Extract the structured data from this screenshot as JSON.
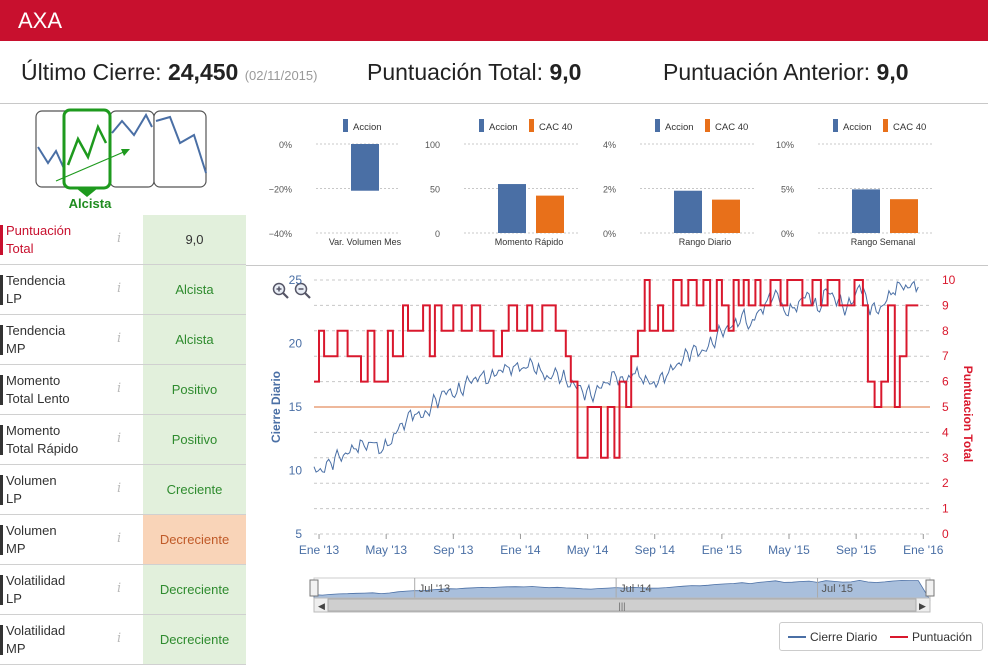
{
  "header": {
    "title": "AXA",
    "brand_color": "#c8102e"
  },
  "summary": {
    "last_close_label": "Último Cierre:",
    "last_close_value": "24,450",
    "last_close_date": "(02/11/2015)",
    "total_label": "Puntuación Total:",
    "total_value": "9,0",
    "prev_label": "Puntuación Anterior:",
    "prev_value": "9,0"
  },
  "trend": {
    "label": "Alcista"
  },
  "indicators": [
    {
      "label": "Puntuación\nTotal",
      "value": "9,0",
      "state": "neutral"
    },
    {
      "label": "Tendencia\nLP",
      "value": "Alcista",
      "state": "good"
    },
    {
      "label": "Tendencia\nMP",
      "value": "Alcista",
      "state": "good"
    },
    {
      "label": "Momento\nTotal Lento",
      "value": "Positivo",
      "state": "good"
    },
    {
      "label": "Momento\nTotal Rápido",
      "value": "Positivo",
      "state": "good"
    },
    {
      "label": "Volumen\nLP",
      "value": "Creciente",
      "state": "good"
    },
    {
      "label": "Volumen\nMP",
      "value": "Decreciente",
      "state": "warn"
    },
    {
      "label": "Volatilidad\nLP",
      "value": "Decreciente",
      "state": "good"
    },
    {
      "label": "Volatilidad\nMP",
      "value": "Decreciente",
      "state": "good"
    }
  ],
  "info_glyph": "i",
  "colors": {
    "accion": "#4a6fa5",
    "cac40": "#e8701a",
    "price_line": "#4a6fa5",
    "score_line": "#d9182d",
    "threshold": "#e8a07a",
    "good_bg": "#e2f0dc",
    "warn_bg": "#f9d4b8"
  },
  "chart_data": [
    {
      "type": "bar",
      "title": "Var. Volumen Mes",
      "legend": [
        "Accion"
      ],
      "series": [
        {
          "name": "Accion",
          "values": [
            -21
          ]
        }
      ],
      "ylim": [
        -40,
        0
      ],
      "yticks": [
        "0%",
        "−20%",
        "−40%"
      ]
    },
    {
      "type": "bar",
      "title": "Momento Rápido",
      "legend": [
        "Accion",
        "CAC 40"
      ],
      "series": [
        {
          "name": "Accion",
          "values": [
            55
          ]
        },
        {
          "name": "CAC 40",
          "values": [
            42
          ]
        }
      ],
      "ylim": [
        0,
        100
      ],
      "yticks": [
        "100",
        "50",
        "0"
      ]
    },
    {
      "type": "bar",
      "title": "Rango Diario",
      "legend": [
        "Accion",
        "CAC 40"
      ],
      "series": [
        {
          "name": "Accion",
          "values": [
            1.9
          ]
        },
        {
          "name": "CAC 40",
          "values": [
            1.5
          ]
        }
      ],
      "ylim": [
        0,
        4
      ],
      "yticks": [
        "4%",
        "2%",
        "0%"
      ]
    },
    {
      "type": "bar",
      "title": "Rango Semanal",
      "legend": [
        "Accion",
        "CAC 40"
      ],
      "series": [
        {
          "name": "Accion",
          "values": [
            4.9
          ]
        },
        {
          "name": "CAC 40",
          "values": [
            3.8
          ]
        }
      ],
      "ylim": [
        0,
        10
      ],
      "yticks": [
        "10%",
        "5%",
        "0%"
      ]
    },
    {
      "type": "line",
      "title": "",
      "ylabel": "Cierre Diario",
      "y2label": "Puntuacion Total",
      "ylim": [
        5,
        25
      ],
      "y2lim": [
        0,
        10
      ],
      "yticks": [
        "25",
        "20",
        "15",
        "10",
        "5"
      ],
      "y2ticks": [
        "10",
        "9",
        "8",
        "7",
        "6",
        "5",
        "4",
        "3",
        "2",
        "1",
        "0"
      ],
      "xticks": [
        "Ene '13",
        "May '13",
        "Sep '13",
        "Ene '14",
        "May '14",
        "Sep '14",
        "Ene '15",
        "May '15",
        "Sep '15",
        "Ene '16"
      ],
      "navigator_ticks": [
        "Jul '13",
        "Jul '14",
        "Jul '15"
      ],
      "threshold": 5,
      "series": [
        {
          "name": "Cierre Diario",
          "axis": "left",
          "t": [
            0,
            0.5,
            1,
            1.5,
            2,
            2.5,
            3,
            3.5,
            4,
            4.5,
            5,
            5.5,
            6,
            6.5,
            7,
            7.5,
            8,
            8.5,
            9,
            9.5,
            10,
            10.5,
            11,
            11.5,
            12,
            12.5,
            13,
            13.5,
            14,
            14.5,
            15,
            15.5,
            16,
            16.5,
            17,
            17.5,
            18,
            18.5,
            19,
            19.5,
            20,
            20.5,
            21,
            21.5,
            22,
            22.5,
            23,
            23.5,
            24,
            24.5,
            25,
            25.5,
            26,
            26.5,
            27,
            27.5,
            28,
            28.5,
            29,
            29.5,
            30,
            30.5,
            31,
            31.5,
            32,
            32.5,
            33,
            33.5,
            34,
            34.5,
            35,
            35.5,
            36
          ],
          "values": [
            10.3,
            9.9,
            10.6,
            11.1,
            11.3,
            11.7,
            11.9,
            12.2,
            11.4,
            12.0,
            13.2,
            13.9,
            14.4,
            14.2,
            15.1,
            15.7,
            16.3,
            16.1,
            16.8,
            17.2,
            17.6,
            17.3,
            17.9,
            18.2,
            18.3,
            18.1,
            18.5,
            17.9,
            17.3,
            17.7,
            17.1,
            16.8,
            16.2,
            15.9,
            16.5,
            16.9,
            17.4,
            16.9,
            17.6,
            17.2,
            16.8,
            16.9,
            17.4,
            18.1,
            18.8,
            19.4,
            19.2,
            19.8,
            20.6,
            21.1,
            21.5,
            22.3,
            21.4,
            22.6,
            23.4,
            24.2,
            22.6,
            22.8,
            23.5,
            23.9,
            22.6,
            24.3,
            23.6,
            22.9,
            23.1,
            24.6,
            23.0,
            22.5,
            23.1,
            24.0,
            24.5,
            24.4,
            24.45
          ]
        },
        {
          "name": "Puntuación",
          "axis": "right",
          "step": true,
          "t": [
            0,
            0.3,
            0.6,
            1.4,
            2.0,
            2.8,
            3.2,
            3.6,
            4.4,
            4.7,
            5.3,
            5.6,
            6.5,
            6.9,
            7.2,
            7.6,
            8.3,
            8.8,
            9.4,
            9.9,
            10.7,
            11.2,
            11.6,
            12.1,
            12.7,
            13.0,
            13.6,
            14.4,
            15.0,
            15.3,
            15.7,
            16.3,
            17.1,
            17.5,
            17.9,
            18.2,
            18.6,
            18.9,
            19.3,
            19.7,
            20.0,
            20.5,
            20.8,
            21.4,
            21.9,
            22.3,
            22.8,
            23.2,
            23.6,
            24.0,
            24.3,
            24.7,
            25.0,
            25.3,
            25.6,
            25.9,
            26.3,
            26.6,
            27.2,
            27.8,
            28.2,
            28.6,
            29.1,
            29.7,
            30.2,
            30.6,
            31.3,
            31.8,
            32.2,
            32.7,
            33.0,
            33.4,
            33.8,
            34.2,
            34.6,
            34.9,
            35.3,
            35.6,
            36
          ],
          "values": [
            6,
            8,
            7,
            8,
            7,
            6,
            8,
            6,
            8,
            7,
            9,
            8,
            9,
            7,
            9,
            8,
            9,
            8,
            9,
            8,
            7,
            8,
            9,
            8,
            9,
            8,
            9,
            8,
            7,
            6,
            3,
            5,
            3,
            5,
            3,
            6,
            5,
            7,
            8,
            10,
            8,
            9,
            8,
            10,
            9,
            10,
            9,
            10,
            8,
            10,
            9,
            8,
            10,
            9,
            10,
            9,
            10,
            9,
            10,
            9,
            10,
            10,
            9,
            10,
            9,
            10,
            9,
            9,
            10,
            9,
            6,
            5,
            6,
            9,
            5,
            7,
            9,
            9,
            9
          ]
        }
      ]
    }
  ],
  "legend": {
    "price": "Cierre Diario",
    "score": "Puntuación"
  }
}
